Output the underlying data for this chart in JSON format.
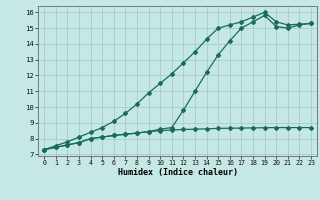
{
  "xlabel": "Humidex (Indice chaleur)",
  "xlim": [
    -0.5,
    23.5
  ],
  "ylim": [
    6.9,
    16.4
  ],
  "yticks": [
    7,
    8,
    9,
    10,
    11,
    12,
    13,
    14,
    15,
    16
  ],
  "xticks": [
    0,
    1,
    2,
    3,
    4,
    5,
    6,
    7,
    8,
    9,
    10,
    11,
    12,
    13,
    14,
    15,
    16,
    17,
    18,
    19,
    20,
    21,
    22,
    23
  ],
  "bg_color": "#c5e8e5",
  "grid_color": "#a0c8c4",
  "line_color": "#1a6b5a",
  "line1_x": [
    0,
    1,
    2,
    3,
    4,
    5,
    6,
    7,
    8,
    9,
    10,
    11,
    12,
    13,
    14,
    15,
    16,
    17,
    18,
    19,
    20,
    21,
    22,
    23
  ],
  "line1_y": [
    7.3,
    7.45,
    7.6,
    7.75,
    8.0,
    8.1,
    8.2,
    8.28,
    8.35,
    8.45,
    8.5,
    8.55,
    8.58,
    8.6,
    8.62,
    8.65,
    8.66,
    8.67,
    8.68,
    8.69,
    8.7,
    8.7,
    8.7,
    8.7
  ],
  "line2_x": [
    0,
    1,
    2,
    3,
    4,
    5,
    6,
    7,
    8,
    9,
    10,
    11,
    12,
    13,
    14,
    15,
    16,
    17,
    18,
    19,
    20,
    21,
    22,
    23
  ],
  "line2_y": [
    7.3,
    7.45,
    7.6,
    7.75,
    8.0,
    8.1,
    8.2,
    8.28,
    8.35,
    8.45,
    8.6,
    8.7,
    9.8,
    11.0,
    12.2,
    13.3,
    14.2,
    15.0,
    15.4,
    15.8,
    15.1,
    15.0,
    15.2,
    15.3
  ],
  "line3_x": [
    0,
    1,
    2,
    3,
    4,
    5,
    6,
    7,
    8,
    9,
    10,
    11,
    12,
    13,
    14,
    15,
    16,
    17,
    18,
    19,
    20,
    21,
    22,
    23
  ],
  "line3_y": [
    7.3,
    7.55,
    7.8,
    8.1,
    8.4,
    8.7,
    9.1,
    9.6,
    10.2,
    10.9,
    11.5,
    12.1,
    12.8,
    13.5,
    14.3,
    15.0,
    15.2,
    15.4,
    15.7,
    16.0,
    15.4,
    15.2,
    15.25,
    15.3
  ]
}
